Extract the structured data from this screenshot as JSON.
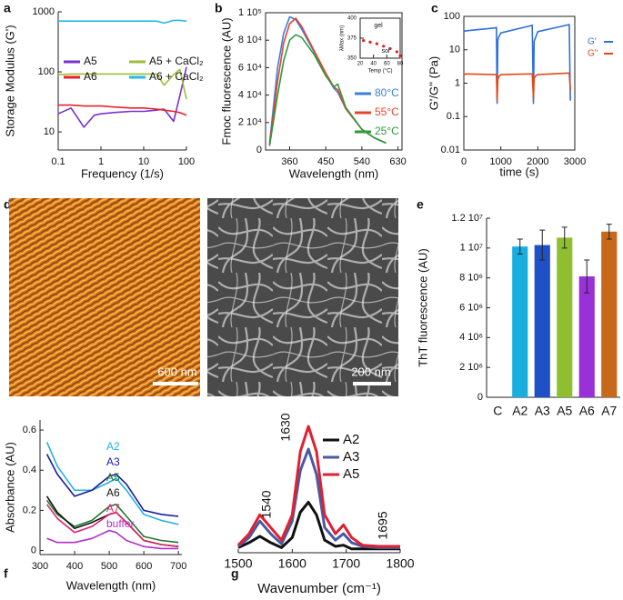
{
  "chart_data": [
    {
      "type": "line",
      "panel": "a",
      "xlabel": "Frequency (1/s)",
      "ylabel": "Storage Modulus (G')",
      "log_x": true,
      "log_y": true,
      "xlim": [
        0.1,
        100
      ],
      "ylim": [
        5,
        1000
      ],
      "xticks": [
        0.1,
        1,
        10,
        100
      ],
      "yticks": [
        10,
        100,
        1000
      ],
      "legend": "upper left",
      "x": [
        0.1,
        0.2,
        0.4,
        0.7,
        1,
        2,
        5,
        10,
        20,
        30,
        50,
        70,
        100
      ],
      "series": [
        {
          "name": "A5",
          "color": "#7a2fd0",
          "values": [
            20,
            25,
            12,
            19,
            20,
            21,
            22,
            22,
            23,
            24,
            15,
            40,
            120
          ]
        },
        {
          "name": "A6",
          "color": "#e8222a",
          "values": [
            28,
            28,
            27,
            27,
            27,
            26,
            25,
            25,
            24,
            23,
            22,
            21,
            19
          ]
        },
        {
          "name": "A5 + CaCl₂",
          "color": "#9bbf3a",
          "values": [
            90,
            92,
            92,
            92,
            92,
            92,
            92,
            92,
            92,
            60,
            90,
            110,
            35
          ]
        },
        {
          "name": "A6 + CaCl₂",
          "color": "#27b8e8",
          "values": [
            700,
            700,
            700,
            700,
            700,
            700,
            700,
            700,
            700,
            650,
            720,
            720,
            700
          ]
        }
      ]
    },
    {
      "type": "line",
      "panel": "b",
      "xlabel": "Wavelength (nm)",
      "ylabel": "Fmoc fluorescence (AU)",
      "xlim": [
        300,
        640
      ],
      "ylim": [
        0,
        100000
      ],
      "xticks": [
        360,
        450,
        540,
        630
      ],
      "yticks": [
        0,
        {
          "value": 20000,
          "label": "2 10⁴"
        },
        {
          "value": 40000,
          "label": "4 10⁴"
        },
        {
          "value": 60000,
          "label": "6 10⁴"
        },
        {
          "value": 80000,
          "label": "8 10⁴"
        },
        {
          "value": 100000,
          "label": "1 10⁵"
        }
      ],
      "legend": "lower right",
      "x": [
        310,
        330,
        345,
        360,
        375,
        390,
        420,
        450,
        470,
        480,
        500,
        540,
        570,
        600
      ],
      "series": [
        {
          "name": "80°C",
          "color": "#3a7fe0",
          "values": [
            5000,
            60000,
            85000,
            97000,
            95000,
            88000,
            72000,
            55000,
            45000,
            42000,
            30000,
            15000,
            9000,
            5000
          ]
        },
        {
          "name": "55°C",
          "color": "#e8452a",
          "values": [
            4000,
            50000,
            78000,
            92000,
            96000,
            90000,
            73000,
            56000,
            46000,
            44000,
            30000,
            15000,
            9000,
            5000
          ]
        },
        {
          "name": "25°C",
          "color": "#2e9a3a",
          "values": [
            3000,
            40000,
            65000,
            80000,
            84000,
            82000,
            70000,
            54000,
            46000,
            48000,
            31000,
            15000,
            9000,
            5000
          ]
        }
      ]
    },
    {
      "type": "scatter",
      "xlabel": "Temp (°C)",
      "ylabel": "λMax (nm)",
      "xlim": [
        20,
        80
      ],
      "ylim": [
        350,
        400
      ],
      "xticks": [
        20,
        40,
        60,
        80
      ],
      "yticks": [
        350,
        375,
        400
      ],
      "color": "#e02020",
      "annotations": [
        "gel",
        "sol"
      ],
      "x": [
        25,
        35,
        45,
        55,
        65,
        75,
        80
      ],
      "values": [
        372,
        370,
        368,
        365,
        362,
        358,
        353
      ]
    },
    {
      "type": "line",
      "panel": "c",
      "xlabel": "time (s)",
      "ylabel": "G'/G'' (Pa)",
      "log_y": true,
      "xlim": [
        0,
        3000
      ],
      "ylim": [
        0.01,
        100
      ],
      "xticks": [
        0,
        1000,
        2000,
        3000
      ],
      "yticks": [
        0.01,
        0.1,
        1,
        10,
        100
      ],
      "legend": "right",
      "x": [
        0,
        50,
        850,
        880,
        900,
        920,
        950,
        1000,
        1800,
        1850,
        1880,
        1900,
        1950,
        2000,
        2800,
        2850,
        2880
      ],
      "series": [
        {
          "name": "G'",
          "color": "#2f6fe0",
          "values": [
            35,
            37,
            45,
            47,
            0.25,
            20,
            25,
            32,
            52,
            54,
            0.25,
            18,
            25,
            35,
            55,
            57,
            0.3
          ]
        },
        {
          "name": "G''",
          "color": "#e04a1a",
          "values": [
            1.8,
            1.9,
            1.8,
            1.8,
            0.3,
            1.3,
            1.6,
            1.8,
            1.9,
            1.9,
            0.35,
            1.4,
            1.7,
            1.8,
            2,
            2,
            0.6
          ]
        }
      ]
    },
    {
      "type": "bar",
      "panel": "e",
      "ylabel": "ThT fluorescence (AU)",
      "ylim": [
        0,
        12000000
      ],
      "yticks": [
        0,
        {
          "value": 2000000,
          "label": "2 10⁶"
        },
        {
          "value": 4000000,
          "label": "4 10⁶"
        },
        {
          "value": 6000000,
          "label": "6 10⁶"
        },
        {
          "value": 8000000,
          "label": "8 10⁶"
        },
        {
          "value": 10000000,
          "label": "1 10⁷"
        },
        {
          "value": 12000000,
          "label": "1.2 10⁷"
        }
      ],
      "categories": [
        "C",
        "A2",
        "A3",
        "A5",
        "A6",
        "A7"
      ],
      "values": [
        0,
        10100000,
        10200000,
        10700000,
        8100000,
        11100000
      ],
      "errors": [
        0,
        500000,
        1000000,
        700000,
        1100000,
        500000
      ],
      "colors": [
        "#19aee0",
        "#19aee0",
        "#2050c8",
        "#8fbf30",
        "#9a30d8",
        "#c8681a"
      ]
    },
    {
      "type": "line",
      "panel": "f",
      "xlabel": "Wavelength (nm)",
      "ylabel": "Absorbance (AU)",
      "xlim": [
        300,
        710
      ],
      "ylim": [
        -0.02,
        0.65
      ],
      "xticks": [
        300,
        400,
        500,
        600,
        700
      ],
      "yticks": [
        0,
        0.2,
        0.4,
        0.6
      ],
      "legend": "upper right",
      "x": [
        320,
        350,
        400,
        450,
        500,
        520,
        550,
        600,
        650,
        700
      ],
      "series": [
        {
          "name": "A2",
          "color": "#22b0e0",
          "values": [
            0.54,
            0.42,
            0.3,
            0.3,
            0.34,
            0.36,
            0.3,
            0.18,
            0.15,
            0.13
          ]
        },
        {
          "name": "A3",
          "color": "#1a1aa0",
          "values": [
            0.48,
            0.38,
            0.27,
            0.3,
            0.37,
            0.38,
            0.33,
            0.2,
            0.18,
            0.17
          ]
        },
        {
          "name": "A5",
          "color": "#1e7a2a",
          "values": [
            0.25,
            0.18,
            0.12,
            0.15,
            0.22,
            0.23,
            0.17,
            0.07,
            0.05,
            0.04
          ]
        },
        {
          "name": "A6",
          "color": "#111111",
          "values": [
            0.27,
            0.19,
            0.11,
            0.14,
            0.18,
            0.19,
            0.14,
            0.05,
            0.03,
            0.02
          ]
        },
        {
          "name": "A7",
          "color": "#e0206a",
          "values": [
            0.23,
            0.16,
            0.09,
            0.12,
            0.18,
            0.19,
            0.14,
            0.05,
            0.03,
            0.02
          ]
        },
        {
          "name": "buffer",
          "color": "#b030c8",
          "values": [
            0.06,
            0.04,
            0.04,
            0.06,
            0.1,
            0.09,
            0.05,
            0.02,
            0.01,
            0.01
          ]
        }
      ]
    },
    {
      "type": "line",
      "panel": "g",
      "xlabel": "Wavenumber (cm⁻¹)",
      "xlim": [
        1500,
        1800
      ],
      "ylim": [
        0,
        1.05
      ],
      "xticks": [
        1500,
        1600,
        1700,
        1800
      ],
      "legend": "upper right",
      "annotations": [
        "1540",
        "1630",
        "1695"
      ],
      "x": [
        1500,
        1520,
        1540,
        1560,
        1580,
        1600,
        1615,
        1630,
        1645,
        1660,
        1680,
        1695,
        1710,
        1730,
        1760,
        1800
      ],
      "series": [
        {
          "name": "A2",
          "color": "#111111",
          "values": [
            0.04,
            0.08,
            0.13,
            0.08,
            0.04,
            0.12,
            0.32,
            0.4,
            0.3,
            0.1,
            0.05,
            0.06,
            0.03,
            0.03,
            0.03,
            0.03
          ]
        },
        {
          "name": "A3",
          "color": "#4a5aa0",
          "values": [
            0.05,
            0.12,
            0.25,
            0.15,
            0.07,
            0.25,
            0.65,
            0.82,
            0.62,
            0.2,
            0.1,
            0.15,
            0.08,
            0.05,
            0.04,
            0.04
          ]
        },
        {
          "name": "A5",
          "color": "#e02030",
          "values": [
            0.06,
            0.15,
            0.3,
            0.2,
            0.1,
            0.3,
            0.8,
            1.0,
            0.8,
            0.3,
            0.15,
            0.22,
            0.12,
            0.06,
            0.05,
            0.05
          ]
        }
      ]
    }
  ],
  "panel_d": {
    "label": "d",
    "scale_bars": [
      "600 nm",
      "200 nm"
    ]
  }
}
